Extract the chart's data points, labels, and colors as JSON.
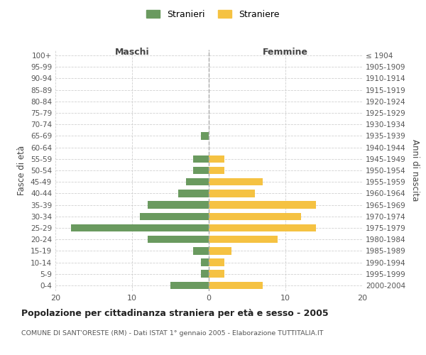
{
  "age_groups": [
    "0-4",
    "5-9",
    "10-14",
    "15-19",
    "20-24",
    "25-29",
    "30-34",
    "35-39",
    "40-44",
    "45-49",
    "50-54",
    "55-59",
    "60-64",
    "65-69",
    "70-74",
    "75-79",
    "80-84",
    "85-89",
    "90-94",
    "95-99",
    "100+"
  ],
  "birth_years": [
    "2000-2004",
    "1995-1999",
    "1990-1994",
    "1985-1989",
    "1980-1984",
    "1975-1979",
    "1970-1974",
    "1965-1969",
    "1960-1964",
    "1955-1959",
    "1950-1954",
    "1945-1949",
    "1940-1944",
    "1935-1939",
    "1930-1934",
    "1925-1929",
    "1920-1924",
    "1915-1919",
    "1910-1914",
    "1905-1909",
    "≤ 1904"
  ],
  "maschi": [
    5,
    1,
    1,
    2,
    8,
    18,
    9,
    8,
    4,
    3,
    2,
    2,
    0,
    1,
    0,
    0,
    0,
    0,
    0,
    0,
    0
  ],
  "femmine": [
    7,
    2,
    2,
    3,
    9,
    14,
    12,
    14,
    6,
    7,
    2,
    2,
    0,
    0,
    0,
    0,
    0,
    0,
    0,
    0,
    0
  ],
  "color_maschi": "#6a9a5f",
  "color_femmine": "#f5c242",
  "title": "Popolazione per cittadinanza straniera per età e sesso - 2005",
  "subtitle": "COMUNE DI SANT'ORESTE (RM) - Dati ISTAT 1° gennaio 2005 - Elaborazione TUTTITALIA.IT",
  "xlabel_left": "Maschi",
  "xlabel_right": "Femmine",
  "ylabel_left": "Fasce di età",
  "ylabel_right": "Anni di nascita",
  "legend_maschi": "Stranieri",
  "legend_femmine": "Straniere",
  "xlim": 20,
  "background_color": "#ffffff",
  "grid_color": "#cccccc"
}
